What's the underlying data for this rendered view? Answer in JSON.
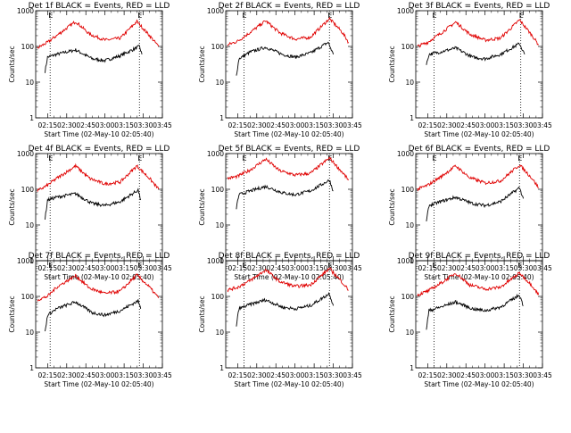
{
  "figure": {
    "background": "#ffffff",
    "events_color": "#000000",
    "lld_color": "#e00000"
  },
  "chart_data": [
    {
      "type": "line",
      "title": "Det 1f BLACK = Events, RED = LLD",
      "xlabel": "Start Time (02-May-10 02:05:40)",
      "ylabel": "Counts/sec",
      "xticks": [
        "02:15",
        "02:30",
        "02:45",
        "03:00",
        "03:15",
        "03:30",
        "03:45"
      ],
      "yticks": [
        "1",
        "10",
        "100",
        "1000"
      ],
      "ylim": [
        1,
        1000
      ],
      "yscale": "log",
      "xrange": [
        "02:05:40",
        "03:45"
      ],
      "markers": [
        "02:17",
        "03:27"
      ],
      "flag_label": "E",
      "series": [
        {
          "name": "Events",
          "color": "#000000",
          "x": [
            "02:13",
            "02:15",
            "02:22",
            "02:37",
            "02:50",
            "03:00",
            "03:12",
            "03:27",
            "03:29"
          ],
          "y": [
            20,
            50,
            60,
            80,
            45,
            40,
            55,
            100,
            60
          ]
        },
        {
          "name": "LLD",
          "color": "#e00000",
          "x": [
            "02:07",
            "02:15",
            "02:22",
            "02:37",
            "02:48",
            "03:00",
            "03:12",
            "03:25",
            "03:35",
            "03:42"
          ],
          "y": [
            90,
            130,
            200,
            500,
            220,
            150,
            170,
            500,
            200,
            100
          ]
        }
      ]
    },
    {
      "type": "line",
      "title": "Det 2f BLACK = Events, RED = LLD",
      "xlabel": "Start Time (02-May-10 02:05:40)",
      "ylabel": "Counts/sec",
      "xticks": [
        "02:15",
        "02:30",
        "02:45",
        "03:00",
        "03:15",
        "03:30",
        "03:45"
      ],
      "yticks": [
        "1",
        "10",
        "100",
        "1000"
      ],
      "ylim": [
        1,
        1000
      ],
      "yscale": "log",
      "xrange": [
        "02:05:40",
        "03:45"
      ],
      "markers": [
        "02:20",
        "03:27"
      ],
      "flag_label": "E",
      "series": [
        {
          "name": "Events",
          "color": "#000000",
          "x": [
            "02:14",
            "02:16",
            "02:25",
            "02:37",
            "02:50",
            "03:00",
            "03:12",
            "03:26",
            "03:30"
          ],
          "y": [
            15,
            45,
            70,
            95,
            60,
            50,
            65,
            130,
            60
          ]
        },
        {
          "name": "LLD",
          "color": "#e00000",
          "x": [
            "02:07",
            "02:15",
            "02:25",
            "02:37",
            "02:48",
            "03:00",
            "03:12",
            "03:27",
            "03:37",
            "03:42"
          ],
          "y": [
            110,
            140,
            250,
            520,
            240,
            160,
            180,
            600,
            250,
            130
          ]
        }
      ]
    },
    {
      "type": "line",
      "title": "Det 3f BLACK = Events, RED = LLD",
      "xlabel": "Start Time (02-May-10 02:05:40)",
      "ylabel": "Counts/sec",
      "xticks": [
        "02:15",
        "02:30",
        "02:45",
        "03:00",
        "03:15",
        "03:30",
        "03:45"
      ],
      "yticks": [
        "1",
        "10",
        "100",
        "1000"
      ],
      "ylim": [
        1,
        1000
      ],
      "yscale": "log",
      "xrange": [
        "02:05:40",
        "03:45"
      ],
      "markers": [
        "02:20",
        "03:28"
      ],
      "flag_label": "E",
      "series": [
        {
          "name": "Events",
          "color": "#000000",
          "x": [
            "02:14",
            "02:16",
            "02:25",
            "02:37",
            "02:50",
            "03:00",
            "03:12",
            "03:27",
            "03:31"
          ],
          "y": [
            30,
            60,
            70,
            90,
            50,
            45,
            60,
            120,
            60
          ]
        },
        {
          "name": "LLD",
          "color": "#e00000",
          "x": [
            "02:07",
            "02:15",
            "02:25",
            "02:37",
            "02:48",
            "03:00",
            "03:12",
            "03:27",
            "03:37",
            "03:42"
          ],
          "y": [
            100,
            130,
            230,
            480,
            220,
            150,
            170,
            550,
            200,
            110
          ]
        }
      ]
    },
    {
      "type": "line",
      "title": "Det 4f BLACK = Events, RED = LLD",
      "xlabel": "Start Time (02-May-10 02:05:40)",
      "ylabel": "Counts/sec",
      "xticks": [
        "02:15",
        "02:30",
        "02:45",
        "03:00",
        "03:15",
        "03:30",
        "03:45"
      ],
      "yticks": [
        "1",
        "10",
        "100",
        "1000"
      ],
      "ylim": [
        1,
        1000
      ],
      "yscale": "log",
      "xrange": [
        "02:05:40",
        "03:45"
      ],
      "markers": [
        "02:17",
        "03:27"
      ],
      "flag_label": "E",
      "series": [
        {
          "name": "Events",
          "color": "#000000",
          "x": [
            "02:13",
            "02:15",
            "02:22",
            "02:37",
            "02:50",
            "03:00",
            "03:12",
            "03:26",
            "03:28"
          ],
          "y": [
            15,
            50,
            60,
            75,
            40,
            35,
            45,
            95,
            50
          ]
        },
        {
          "name": "LLD",
          "color": "#e00000",
          "x": [
            "02:07",
            "02:15",
            "02:22",
            "02:37",
            "02:48",
            "03:00",
            "03:12",
            "03:25",
            "03:35",
            "03:42"
          ],
          "y": [
            90,
            130,
            200,
            450,
            200,
            140,
            160,
            450,
            200,
            100
          ]
        }
      ]
    },
    {
      "type": "line",
      "title": "Det 5f BLACK = Events, RED = LLD",
      "xlabel": "Start Time (02-May-10 02:05:40)",
      "ylabel": "Counts/sec",
      "xticks": [
        "02:15",
        "02:30",
        "02:45",
        "03:00",
        "03:15",
        "03:30",
        "03:45"
      ],
      "yticks": [
        "1",
        "10",
        "100",
        "1000"
      ],
      "ylim": [
        1,
        1000
      ],
      "yscale": "log",
      "xrange": [
        "02:05:40",
        "03:45"
      ],
      "markers": [
        "02:20",
        "03:27"
      ],
      "flag_label": "E",
      "series": [
        {
          "name": "Events",
          "color": "#000000",
          "x": [
            "02:14",
            "02:16",
            "02:25",
            "02:37",
            "02:50",
            "03:00",
            "03:12",
            "03:27",
            "03:30"
          ],
          "y": [
            30,
            70,
            90,
            120,
            80,
            70,
            90,
            180,
            90
          ]
        },
        {
          "name": "LLD",
          "color": "#e00000",
          "x": [
            "02:07",
            "02:15",
            "02:25",
            "02:37",
            "02:48",
            "03:00",
            "03:12",
            "03:27",
            "03:37",
            "03:42"
          ],
          "y": [
            200,
            230,
            350,
            700,
            330,
            250,
            280,
            750,
            300,
            180
          ]
        }
      ]
    },
    {
      "type": "line",
      "title": "Det 6f BLACK = Events, RED = LLD",
      "xlabel": "Start Time (02-May-10 02:05:40)",
      "ylabel": "Counts/sec",
      "xticks": [
        "02:15",
        "02:30",
        "02:45",
        "03:00",
        "03:15",
        "03:30",
        "03:45"
      ],
      "yticks": [
        "1",
        "10",
        "100",
        "1000"
      ],
      "ylim": [
        1,
        1000
      ],
      "yscale": "log",
      "xrange": [
        "02:05:40",
        "03:45"
      ],
      "markers": [
        "02:20",
        "03:27"
      ],
      "flag_label": "E",
      "series": [
        {
          "name": "Events",
          "color": "#000000",
          "x": [
            "02:14",
            "02:16",
            "02:25",
            "02:37",
            "02:50",
            "03:00",
            "03:12",
            "03:27",
            "03:30"
          ],
          "y": [
            12,
            35,
            45,
            60,
            40,
            35,
            45,
            110,
            55
          ]
        },
        {
          "name": "LLD",
          "color": "#e00000",
          "x": [
            "02:07",
            "02:15",
            "02:25",
            "02:37",
            "02:48",
            "03:00",
            "03:12",
            "03:27",
            "03:37",
            "03:42"
          ],
          "y": [
            100,
            130,
            220,
            450,
            210,
            150,
            170,
            480,
            200,
            110
          ]
        }
      ]
    },
    {
      "type": "line",
      "title": "Det 7f BLACK = Events, RED = LLD",
      "xlabel": "Start Time (02-May-10 02:05:40)",
      "ylabel": "Counts/sec",
      "xticks": [
        "02:15",
        "02:30",
        "02:45",
        "03:00",
        "03:15",
        "03:30",
        "03:45"
      ],
      "yticks": [
        "1",
        "10",
        "100",
        "1000"
      ],
      "ylim": [
        1,
        1000
      ],
      "yscale": "log",
      "xrange": [
        "02:05:40",
        "03:45"
      ],
      "markers": [
        "02:17",
        "03:27"
      ],
      "flag_label": "E",
      "series": [
        {
          "name": "Events",
          "color": "#000000",
          "x": [
            "02:13",
            "02:15",
            "02:22",
            "02:37",
            "02:50",
            "03:00",
            "03:12",
            "03:26",
            "03:28"
          ],
          "y": [
            10,
            30,
            45,
            70,
            35,
            30,
            40,
            75,
            45
          ]
        },
        {
          "name": "LLD",
          "color": "#e00000",
          "x": [
            "02:07",
            "02:15",
            "02:22",
            "02:37",
            "02:48",
            "03:00",
            "03:12",
            "03:25",
            "03:35",
            "03:42"
          ],
          "y": [
            80,
            100,
            180,
            380,
            170,
            120,
            140,
            400,
            180,
            90
          ]
        }
      ]
    },
    {
      "type": "line",
      "title": "Det 8f BLACK = Events, RED = LLD",
      "xlabel": "Start Time (02-May-10 02:05:40)",
      "ylabel": "Counts/sec",
      "xticks": [
        "02:15",
        "02:30",
        "02:45",
        "03:00",
        "03:15",
        "03:30",
        "03:45"
      ],
      "yticks": [
        "1",
        "10",
        "100",
        "1000"
      ],
      "ylim": [
        1,
        1000
      ],
      "yscale": "log",
      "xrange": [
        "02:05:40",
        "03:45"
      ],
      "markers": [
        "02:20",
        "03:27"
      ],
      "flag_label": "E",
      "series": [
        {
          "name": "Events",
          "color": "#000000",
          "x": [
            "02:14",
            "02:16",
            "02:25",
            "02:37",
            "02:50",
            "03:00",
            "03:12",
            "03:27",
            "03:30"
          ],
          "y": [
            15,
            45,
            60,
            80,
            50,
            45,
            55,
            120,
            55
          ]
        },
        {
          "name": "LLD",
          "color": "#e00000",
          "x": [
            "02:07",
            "02:15",
            "02:25",
            "02:37",
            "02:48",
            "03:00",
            "03:12",
            "03:27",
            "03:37",
            "03:42"
          ],
          "y": [
            150,
            180,
            280,
            550,
            260,
            190,
            210,
            600,
            250,
            150
          ]
        }
      ]
    },
    {
      "type": "line",
      "title": "Det 9f BLACK = Events, RED = LLD",
      "xlabel": "Start Time (02-May-10 02:05:40)",
      "ylabel": "Counts/sec",
      "xticks": [
        "02:15",
        "02:30",
        "02:45",
        "03:00",
        "03:15",
        "03:30",
        "03:45"
      ],
      "yticks": [
        "1",
        "10",
        "100",
        "1000"
      ],
      "ylim": [
        1,
        1000
      ],
      "yscale": "log",
      "xrange": [
        "02:05:40",
        "03:45"
      ],
      "markers": [
        "02:20",
        "03:27"
      ],
      "flag_label": "E",
      "series": [
        {
          "name": "Events",
          "color": "#000000",
          "x": [
            "02:14",
            "02:16",
            "02:25",
            "02:37",
            "02:50",
            "03:00",
            "03:12",
            "03:27",
            "03:30"
          ],
          "y": [
            12,
            40,
            50,
            70,
            45,
            40,
            50,
            110,
            55
          ]
        },
        {
          "name": "LLD",
          "color": "#e00000",
          "x": [
            "02:07",
            "02:15",
            "02:25",
            "02:37",
            "02:48",
            "03:00",
            "03:12",
            "03:27",
            "03:37",
            "03:42"
          ],
          "y": [
            110,
            140,
            230,
            450,
            210,
            160,
            180,
            450,
            200,
            110
          ]
        }
      ]
    }
  ]
}
